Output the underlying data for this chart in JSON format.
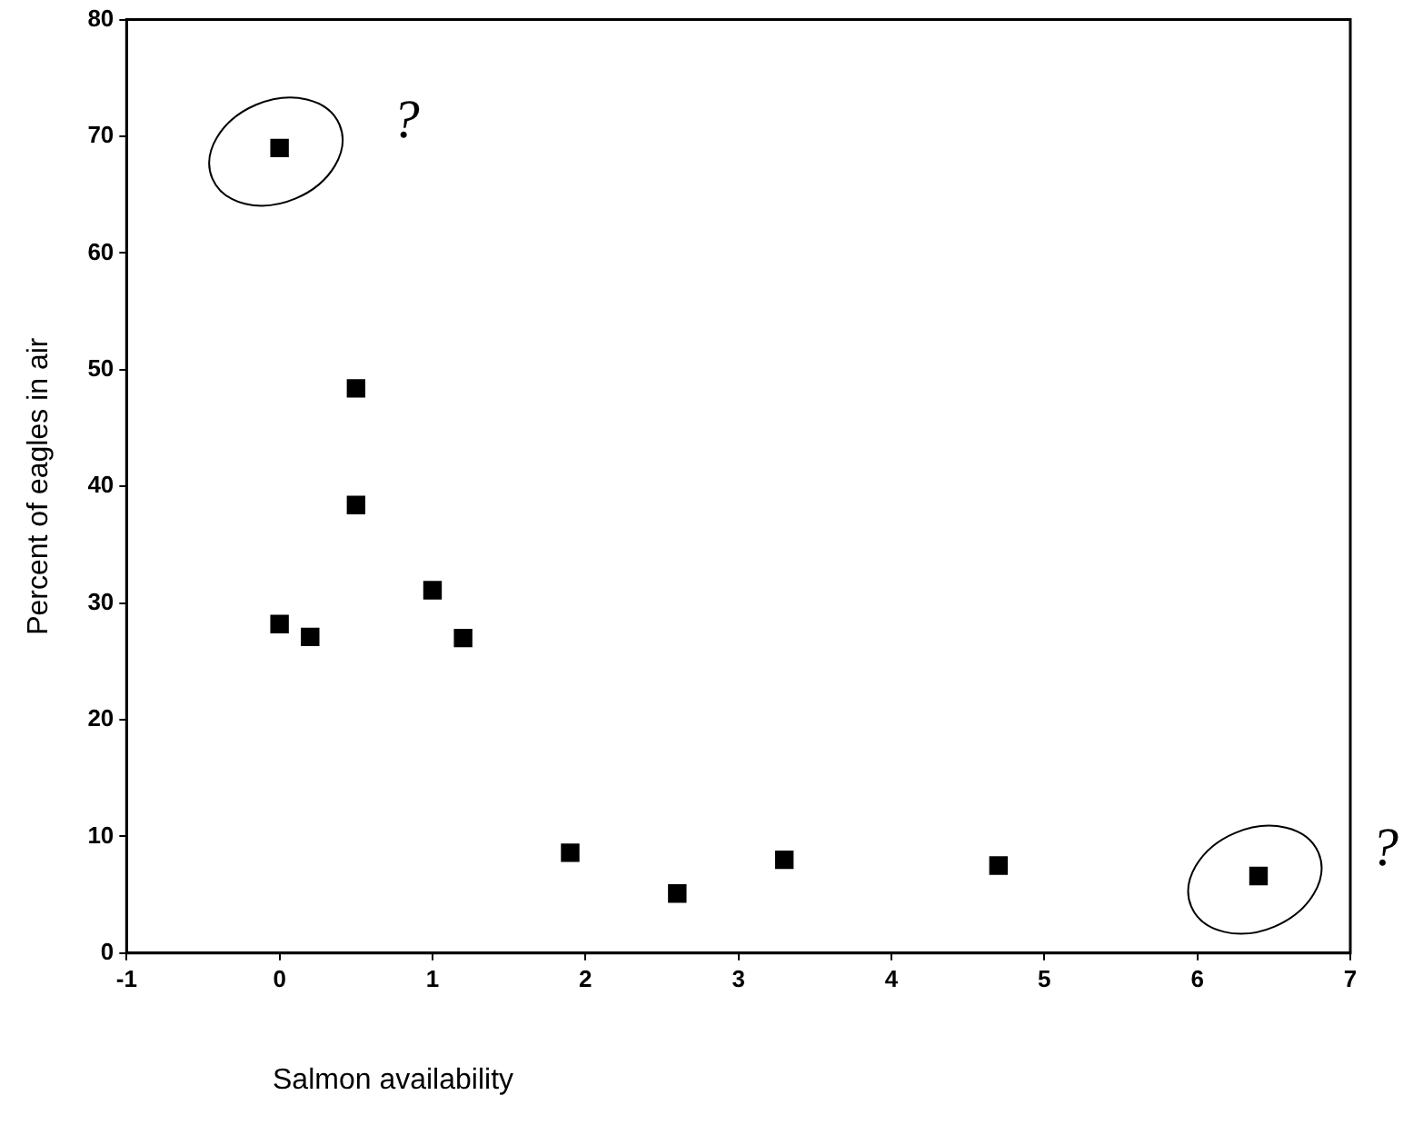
{
  "chart_data": {
    "type": "scatter",
    "xlabel": "Salmon availability",
    "ylabel": "Percent of eagles in air",
    "x": [
      0,
      0.5,
      0.5,
      0,
      0.2,
      1.0,
      1.2,
      1.9,
      2.6,
      3.3,
      4.7,
      6.4
    ],
    "values": [
      69,
      48.4,
      38.4,
      28.2,
      27.1,
      31.1,
      27.0,
      8.6,
      5.1,
      8.0,
      7.5,
      6.6
    ],
    "color": "#000000",
    "marker": "square",
    "grid": false,
    "legend": false,
    "xlim": [
      -1,
      7
    ],
    "xticks": [
      -1,
      0,
      1,
      2,
      3,
      4,
      5,
      6,
      7
    ],
    "ylim": [
      0,
      80
    ],
    "yticks": [
      0,
      10,
      20,
      30,
      40,
      50,
      60,
      70,
      80
    ],
    "annotations": [
      {
        "text": "?",
        "x": 0,
        "y": 69
      },
      {
        "text": "?",
        "x": 6.4,
        "y": 6.6
      }
    ]
  }
}
